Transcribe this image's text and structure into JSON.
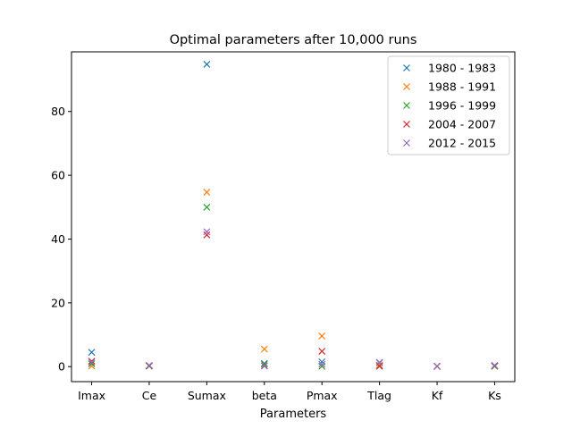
{
  "chart_data": {
    "type": "scatter",
    "title": "Optimal parameters after 10,000 runs",
    "xlabel": "Parameters",
    "ylabel": "",
    "categories": [
      "Imax",
      "Ce",
      "Sumax",
      "beta",
      "Pmax",
      "Tlag",
      "Kf",
      "Ks"
    ],
    "ylim": [
      -4.7,
      98.7
    ],
    "yticks": [
      0,
      20,
      40,
      60,
      80
    ],
    "grid": false,
    "legend_position": "upper-right",
    "marker": "x",
    "series": [
      {
        "name": "1980 - 1983",
        "color": "#1f77b4",
        "values": [
          4.5,
          0.2,
          94.8,
          1.0,
          1.5,
          1.3,
          0.1,
          0.2
        ]
      },
      {
        "name": "1988 - 1991",
        "color": "#ff7f0e",
        "values": [
          0.2,
          0.3,
          54.7,
          5.5,
          9.6,
          0.5,
          0.1,
          0.3
        ]
      },
      {
        "name": "1996 - 1999",
        "color": "#2ca02c",
        "values": [
          0.9,
          0.2,
          50.0,
          0.8,
          0.1,
          0.1,
          0.1,
          0.1
        ]
      },
      {
        "name": "2004 - 2007",
        "color": "#d62728",
        "values": [
          1.7,
          0.3,
          41.3,
          0.3,
          4.8,
          0.2,
          0.1,
          0.3
        ]
      },
      {
        "name": "2012 - 2015",
        "color": "#9467bd",
        "values": [
          1.4,
          0.4,
          42.3,
          0.2,
          0.7,
          1.2,
          0.1,
          0.4
        ]
      }
    ]
  }
}
